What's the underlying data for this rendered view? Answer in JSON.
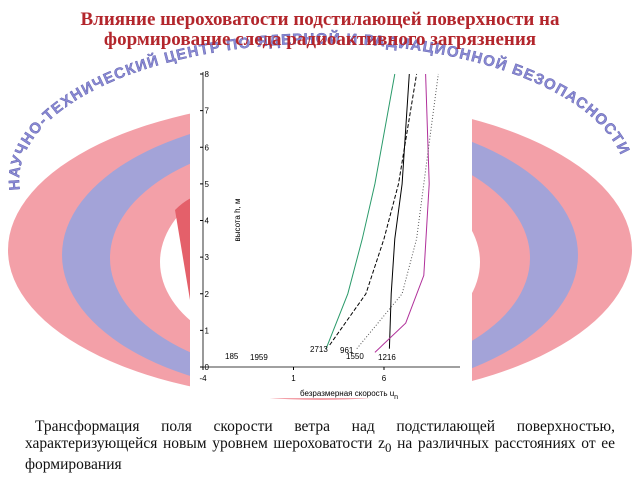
{
  "slide": {
    "title": "Влияние шероховатости подстилающей поверхности на формирование следа радиоактивного загрязнения",
    "arc_text": "НАУЧНО-ТЕХНИЧЕСКИЙ ЦЕНТР ПО ЯДЕРНОЙ И РАДИАЦИОННОЙ БЕЗОПАСНОСТИ",
    "caption_main": "Трансформация поля скорости ветра над подстилающей поверхностью, характеризующейся новым уровнем шероховатости z",
    "caption_sub": "0",
    "caption_end": " на различных расстояниях от ее формирования"
  },
  "chart_data": {
    "type": "line",
    "xlabel": "безразмерная скорость u",
    "xlabel_sub": "n",
    "ylabel": "высота h, м",
    "xlim": [
      -4,
      10.2
    ],
    "xticks": [
      -4,
      1,
      6
    ],
    "ylim": [
      0,
      8
    ],
    "yticks": [
      0,
      1,
      2,
      3,
      4,
      5,
      6,
      7,
      8
    ],
    "annotations": [
      "185",
      "1959",
      "2713",
      "961",
      "1550",
      "1216"
    ],
    "series": [
      {
        "color": "#000000",
        "dash": "solid",
        "x": [
          6.3,
          6.4,
          6.6,
          7.0,
          7.4
        ],
        "values": [
          0.5,
          2,
          3.5,
          5,
          8
        ]
      },
      {
        "color": "#b0309a",
        "dash": "solid",
        "x": [
          5.5,
          7.2,
          8.2,
          8.5,
          8.3
        ],
        "values": [
          0.4,
          1.2,
          2.5,
          5,
          8
        ]
      },
      {
        "color": "#2a9a6a",
        "dash": "solid",
        "x": [
          2.8,
          4.0,
          4.8,
          5.5,
          6.6
        ],
        "values": [
          0.5,
          2,
          3.5,
          5,
          8
        ]
      },
      {
        "color": "#000000",
        "dash": "dashed",
        "x": [
          3.0,
          5.0,
          6.0,
          6.8,
          7.8
        ],
        "values": [
          0.6,
          2,
          3.5,
          5,
          8
        ]
      },
      {
        "color": "#555555",
        "dash": "dotted",
        "x": [
          4.5,
          7.0,
          7.8,
          8.2,
          9.0
        ],
        "values": [
          0.5,
          2,
          3.5,
          5,
          8
        ]
      }
    ]
  }
}
